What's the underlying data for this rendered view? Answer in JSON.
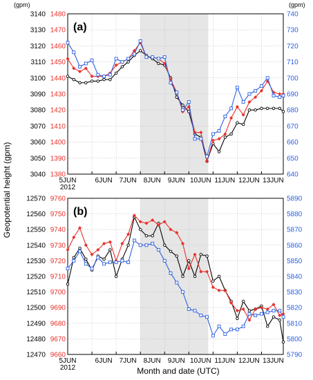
{
  "colors": {
    "black": "#000000",
    "red": "#e8302a",
    "blue": "#2b5fe0",
    "shade": "#e6e6e6",
    "grid": "#bdbdbd"
  },
  "y_unit_label": "(gpm)",
  "ylabel": "Geopotential height (gpm)",
  "xlabel": "Month and date (UTC)",
  "chart_data": [
    {
      "type": "line",
      "panel_label": "(a)",
      "x_ticks": [
        "5JUN",
        "6JUN",
        "7JUN",
        "8JUN",
        "9JUN",
        "10JUN",
        "11JUN",
        "12JUN",
        "13JUN"
      ],
      "x_year_label": "2012",
      "shaded_x_range": [
        8,
        10.8
      ],
      "xlim": [
        5,
        13.9
      ],
      "axes": [
        {
          "side": "left-outer",
          "color": "#000000",
          "ylim": [
            3040,
            3140
          ],
          "ticks": [
            3040,
            3050,
            3060,
            3070,
            3080,
            3090,
            3100,
            3110,
            3120,
            3130,
            3140
          ]
        },
        {
          "side": "left-inner",
          "color": "#e8302a",
          "ylim": [
            1380,
            1480
          ],
          "ticks": [
            1380,
            1390,
            1400,
            1410,
            1420,
            1430,
            1440,
            1450,
            1460,
            1470,
            1480
          ]
        },
        {
          "side": "right",
          "color": "#2b5fe0",
          "ylim": [
            640,
            740
          ],
          "ticks": [
            640,
            650,
            660,
            670,
            680,
            690,
            700,
            710,
            720,
            730,
            740
          ]
        }
      ],
      "series": [
        {
          "axis": 0,
          "color": "#000000",
          "marker": "circle",
          "x": [
            5,
            5.25,
            5.5,
            5.75,
            6,
            6.25,
            6.5,
            6.75,
            7,
            7.25,
            7.5,
            7.75,
            8,
            8.25,
            8.5,
            8.75,
            9,
            9.25,
            9.5,
            9.75,
            10,
            10.25,
            10.5,
            10.75,
            11,
            11.25,
            11.5,
            11.75,
            12,
            12.25,
            12.5,
            12.75,
            13,
            13.25,
            13.5,
            13.75,
            13.9
          ],
          "y": [
            3101,
            3099,
            3097,
            3097,
            3098,
            3098,
            3099,
            3099,
            3103,
            3107,
            3110,
            3114,
            3117,
            3114,
            3112,
            3109,
            3108,
            3100,
            3088,
            3083,
            3079,
            3065,
            3063,
            3048,
            3059,
            3054,
            3063,
            3065,
            3072,
            3071,
            3080,
            3080,
            3081,
            3081,
            3081,
            3081,
            3079
          ]
        },
        {
          "axis": 1,
          "color": "#e8302a",
          "marker": "diamond",
          "x": [
            5,
            5.25,
            5.5,
            5.75,
            6,
            6.25,
            6.5,
            6.75,
            7,
            7.25,
            7.5,
            7.75,
            8,
            8.25,
            8.5,
            8.75,
            9,
            9.25,
            9.5,
            9.75,
            10,
            10.25,
            10.5,
            10.75,
            11,
            11.25,
            11.5,
            11.75,
            12,
            12.25,
            12.5,
            12.75,
            13,
            13.25,
            13.5,
            13.75,
            13.9
          ],
          "y": [
            1452,
            1446,
            1444,
            1446,
            1441,
            1441,
            1441,
            1443,
            1448,
            1450,
            1452,
            1457,
            1462,
            1453,
            1453,
            1452,
            1449,
            1439,
            1431,
            1419,
            1422,
            1406,
            1406,
            1388,
            1401,
            1402,
            1405,
            1415,
            1422,
            1417,
            1425,
            1428,
            1432,
            1438,
            1431,
            1430,
            1430
          ]
        },
        {
          "axis": 2,
          "color": "#2b5fe0",
          "marker": "square",
          "x": [
            5,
            5.25,
            5.5,
            5.75,
            6,
            6.25,
            6.5,
            6.75,
            7,
            7.25,
            7.5,
            7.75,
            8,
            8.25,
            8.5,
            8.75,
            9,
            9.25,
            9.5,
            9.75,
            10,
            10.25,
            10.5,
            10.75,
            11,
            11.25,
            11.5,
            11.75,
            12,
            12.25,
            12.5,
            12.75,
            13,
            13.25,
            13.5,
            13.75,
            13.9
          ],
          "y": [
            722,
            716,
            707,
            709,
            711,
            702,
            701,
            702,
            712,
            710,
            712,
            715,
            723,
            713,
            713,
            712,
            713,
            697,
            691,
            680,
            685,
            662,
            662,
            651,
            665,
            667,
            676,
            681,
            694,
            685,
            690,
            692,
            695,
            700,
            689,
            688,
            689
          ]
        }
      ]
    },
    {
      "type": "line",
      "panel_label": "(b)",
      "x_ticks": [
        "5JUN",
        "6JUN",
        "7JUN",
        "8JUN",
        "9JUN",
        "10JUN",
        "11JUN",
        "12JUN",
        "13JUN"
      ],
      "x_year_label": "2012",
      "shaded_x_range": [
        8,
        10.8
      ],
      "xlim": [
        5,
        13.9
      ],
      "axes": [
        {
          "side": "left-outer",
          "color": "#000000",
          "ylim": [
            12470,
            12570
          ],
          "ticks": [
            12470,
            12480,
            12490,
            12500,
            12510,
            12520,
            12530,
            12540,
            12550,
            12560,
            12570
          ]
        },
        {
          "side": "left-inner",
          "color": "#e8302a",
          "ylim": [
            9660,
            9760
          ],
          "ticks": [
            9660,
            9670,
            9680,
            9690,
            9700,
            9710,
            9720,
            9730,
            9740,
            9750,
            9760
          ]
        },
        {
          "side": "right",
          "color": "#2b5fe0",
          "ylim": [
            5790,
            5890
          ],
          "ticks": [
            5790,
            5800,
            5810,
            5820,
            5830,
            5840,
            5850,
            5860,
            5870,
            5880,
            5890
          ]
        }
      ],
      "series": [
        {
          "axis": 0,
          "color": "#000000",
          "marker": "circle",
          "x": [
            5,
            5.25,
            5.5,
            5.75,
            6,
            6.25,
            6.5,
            6.75,
            7,
            7.25,
            7.5,
            7.75,
            8,
            8.25,
            8.5,
            8.75,
            9,
            9.25,
            9.5,
            9.75,
            10,
            10.25,
            10.5,
            10.75,
            11,
            11.25,
            11.5,
            11.75,
            12,
            12.25,
            12.5,
            12.75,
            13,
            13.25,
            13.5,
            13.75,
            13.9
          ],
          "y": [
            12515,
            12532,
            12538,
            12531,
            12524,
            12533,
            12531,
            12537,
            12520,
            12531,
            12540,
            12558,
            12550,
            12546,
            12546,
            12554,
            12540,
            12536,
            12533,
            12520,
            12530,
            12520,
            12534,
            12533,
            12517,
            12520,
            12511,
            12504,
            12493,
            12504,
            12498,
            12499,
            12501,
            12488,
            12494,
            12492,
            12478
          ]
        },
        {
          "axis": 1,
          "color": "#e8302a",
          "marker": "diamond",
          "x": [
            5,
            5.25,
            5.5,
            5.75,
            6,
            6.25,
            6.5,
            6.75,
            7,
            7.25,
            7.5,
            7.75,
            8,
            8.25,
            8.5,
            8.75,
            9,
            9.25,
            9.5,
            9.75,
            10,
            10.25,
            10.5,
            10.75,
            11,
            11.25,
            11.5,
            11.75,
            12,
            12.25,
            12.5,
            12.75,
            13,
            13.25,
            13.5,
            13.75,
            13.9
          ],
          "y": [
            9727,
            9735,
            9741,
            9730,
            9724,
            9727,
            9731,
            9732,
            9720,
            9731,
            9737,
            9749,
            9745,
            9744,
            9746,
            9743,
            9745,
            9740,
            9738,
            9731,
            9715,
            9724,
            9713,
            9713,
            9703,
            9701,
            9701,
            9693,
            9688,
            9689,
            9682,
            9689,
            9690,
            9689,
            9692,
            9685,
            9686
          ]
        },
        {
          "axis": 2,
          "color": "#2b5fe0",
          "marker": "square",
          "x": [
            5,
            5.25,
            5.5,
            5.75,
            6,
            6.25,
            6.5,
            6.75,
            7,
            7.25,
            7.5,
            7.75,
            8,
            8.25,
            8.5,
            8.75,
            9,
            9.25,
            9.5,
            9.75,
            10,
            10.25,
            10.5,
            10.75,
            11,
            11.25,
            11.5,
            11.75,
            12,
            12.25,
            12.5,
            12.75,
            13,
            13.25,
            13.5,
            13.75,
            13.9
          ],
          "y": [
            5845,
            5850,
            5856,
            5848,
            5845,
            5852,
            5848,
            5849,
            5849,
            5850,
            5849,
            5863,
            5860,
            5860,
            5861,
            5857,
            5850,
            5842,
            5836,
            5830,
            5819,
            5818,
            5815,
            5814,
            5802,
            5808,
            5803,
            5806,
            5806,
            5808,
            5816,
            5815,
            5816,
            5817,
            5818,
            5818,
            5814
          ]
        }
      ]
    }
  ]
}
